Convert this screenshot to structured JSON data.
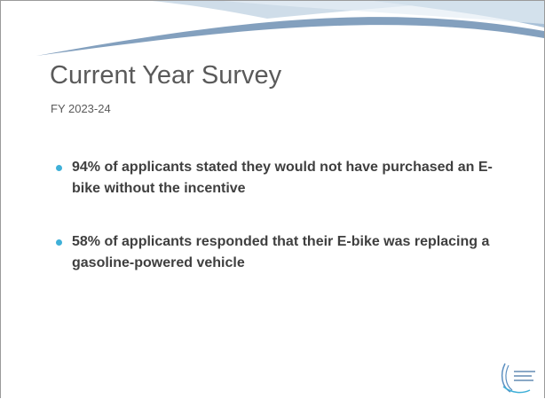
{
  "header": {
    "title": "Current Year Survey",
    "subtitle": "FY 2023-24"
  },
  "bullets": [
    "94% of applicants stated they would not have purchased an E-bike without the incentive",
    "58% of applicants responded that their E-bike was replacing a gasoline-powered vehicle"
  ]
}
